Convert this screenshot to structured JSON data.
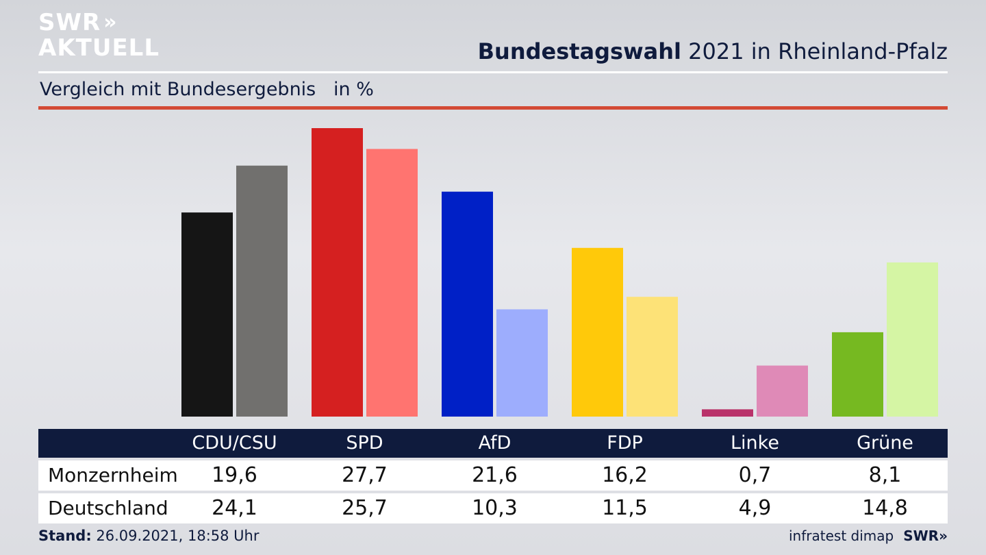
{
  "logo": {
    "top": "SWR",
    "arrows": "»",
    "bottom": "AKTUELL"
  },
  "header": {
    "title_bold": "Bundestagswahl",
    "title_rest": " 2021 in Rheinland-Pfalz"
  },
  "subtitle": "Vergleich mit Bundesergebnis   in %",
  "footer": {
    "stand_label": "Stand:",
    "stand_value": " 26.09.2021, 18:58 Uhr",
    "source": "infratest dimap",
    "brand": "SWR»"
  },
  "table": {
    "rows": [
      {
        "label": "Monzernheim"
      },
      {
        "label": "Deutschland"
      }
    ]
  },
  "chart_data": {
    "type": "bar",
    "categories": [
      "CDU/CSU",
      "SPD",
      "AfD",
      "FDP",
      "Linke",
      "Grüne"
    ],
    "series": [
      {
        "name": "Monzernheim",
        "values": [
          19.6,
          27.7,
          21.6,
          16.2,
          0.7,
          8.1
        ],
        "labels": [
          "19,6",
          "27,7",
          "21,6",
          "16,2",
          "0,7",
          "8,1"
        ],
        "colors": [
          "#151515",
          "#d52020",
          "#0020c6",
          "#ffc90a",
          "#b9326a",
          "#76b921"
        ]
      },
      {
        "name": "Deutschland",
        "values": [
          24.1,
          25.7,
          10.3,
          11.5,
          4.9,
          14.8
        ],
        "labels": [
          "24,1",
          "25,7",
          "10,3",
          "11,5",
          "4,9",
          "14,8"
        ],
        "colors": [
          "#71706e",
          "#ff7470",
          "#9dadfd",
          "#fde277",
          "#df8ab7",
          "#d5f5a4"
        ]
      }
    ],
    "ylim": [
      0,
      27.7
    ],
    "grid": false
  }
}
